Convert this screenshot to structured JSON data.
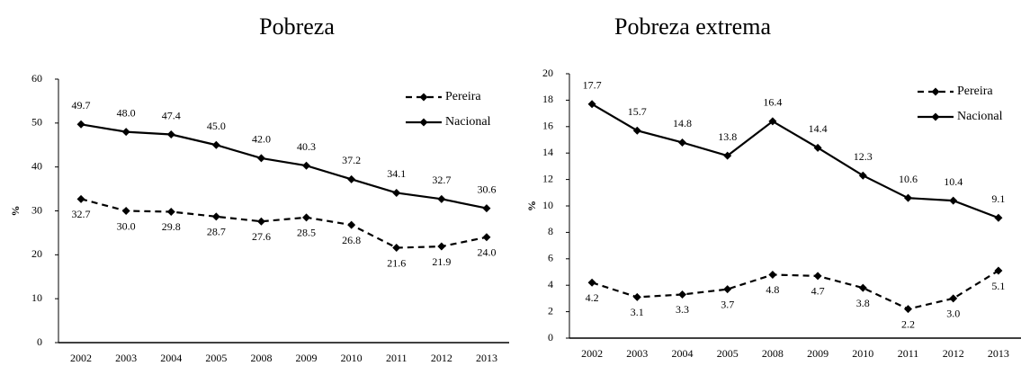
{
  "chart_data": [
    {
      "type": "line",
      "title": "Pobreza",
      "y_label": "%",
      "categories": [
        "2002",
        "2003",
        "2004",
        "2005",
        "2008",
        "2009",
        "2010",
        "2011",
        "2012",
        "2013"
      ],
      "series": [
        {
          "name": "Pereira",
          "color": "#000000",
          "linestyle": "dashed",
          "values": [
            32.7,
            30.0,
            29.8,
            28.7,
            27.6,
            28.5,
            26.8,
            21.6,
            21.9,
            24.0
          ],
          "value_labels": [
            "32.7",
            "30.0",
            "29.8",
            "28.7",
            "27.6",
            "28.5",
            "26.8",
            "21.6",
            "21.9",
            "24.0"
          ]
        },
        {
          "name": "Nacional",
          "color": "#000000",
          "linestyle": "solid",
          "values": [
            49.7,
            48.0,
            47.4,
            45.0,
            42.0,
            40.3,
            37.2,
            34.1,
            32.7,
            30.6
          ],
          "value_labels": [
            "49.7",
            "48.0",
            "47.4",
            "45.0",
            "42.0",
            "40.3",
            "37.2",
            "34.1",
            "32.7",
            "30.6"
          ]
        }
      ],
      "ylim": [
        0,
        60
      ],
      "yticks": [
        0,
        10,
        20,
        30,
        40,
        50,
        60
      ],
      "grid": false,
      "legend": "upper right"
    },
    {
      "type": "line",
      "title": "Pobreza extrema",
      "y_label": "%",
      "categories": [
        "2002",
        "2003",
        "2004",
        "2005",
        "2008",
        "2009",
        "2010",
        "2011",
        "2012",
        "2013"
      ],
      "series": [
        {
          "name": "Pereira",
          "color": "#000000",
          "linestyle": "dashed",
          "values": [
            4.2,
            3.1,
            3.3,
            3.7,
            4.8,
            4.7,
            3.8,
            2.2,
            3.0,
            5.1
          ],
          "value_labels": [
            "4.2",
            "3.1",
            "3.3",
            "3.7",
            "4.8",
            "4.7",
            "3.8",
            "2.2",
            "3.0",
            "5.1"
          ]
        },
        {
          "name": "Nacional",
          "color": "#000000",
          "linestyle": "solid",
          "values": [
            17.7,
            15.7,
            14.8,
            13.8,
            16.4,
            14.4,
            12.3,
            10.6,
            10.4,
            9.1
          ],
          "value_labels": [
            "17.7",
            "15.7",
            "14.8",
            "13.8",
            "16.4",
            "14.4",
            "12.3",
            "10.6",
            "10.4",
            "9.1"
          ]
        }
      ],
      "ylim": [
        0,
        20
      ],
      "yticks": [
        0,
        2,
        4,
        6,
        8,
        10,
        12,
        14,
        16,
        18,
        20
      ],
      "grid": false,
      "legend": "upper right"
    }
  ]
}
